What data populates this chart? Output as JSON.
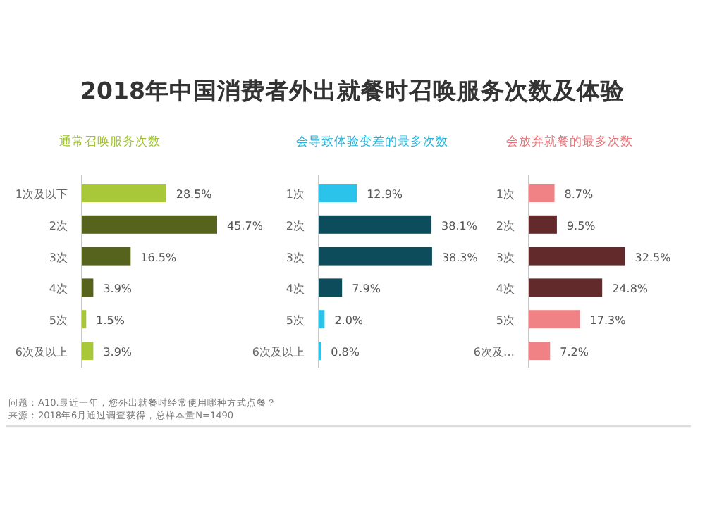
{
  "chart_data": [
    {
      "type": "bar",
      "orientation": "horizontal",
      "title": "2018年中国消费者外出就餐时召唤服务次数及体验",
      "subtitle": "通常召唤服务次数",
      "categories": [
        "1次及以下",
        "2次",
        "3次",
        "4次",
        "5次",
        "6次及以上"
      ],
      "values": [
        28.5,
        45.7,
        16.5,
        3.9,
        1.5,
        3.9
      ],
      "value_labels": [
        "28.5%",
        "45.7%",
        "16.5%",
        "3.9%",
        "1.5%",
        "3.9%"
      ],
      "colors": [
        "#a8c83a",
        "#56631c",
        "#56631c",
        "#56631c",
        "#a8c83a",
        "#a8c83a"
      ],
      "annotations": [
        "问题：A10.最近一年，您外出就餐时经常使用哪种方式点餐？",
        "来源：2018年6月通过调查获得，总样本量N=1490"
      ]
    },
    {
      "type": "bar",
      "orientation": "horizontal",
      "subtitle": "会导致体验变差的最多次数",
      "categories": [
        "1次",
        "2次",
        "3次",
        "4次",
        "5次",
        "6次及以上"
      ],
      "values": [
        12.9,
        38.1,
        38.3,
        7.9,
        2.0,
        0.8
      ],
      "value_labels": [
        "12.9%",
        "38.1%",
        "38.3%",
        "7.9%",
        "2.0%",
        "0.8%"
      ],
      "colors": [
        "#2cc3ea",
        "#0d4c5b",
        "#0d4c5b",
        "#0d4c5b",
        "#2cc3ea",
        "#2cc3ea"
      ]
    },
    {
      "type": "bar",
      "orientation": "horizontal",
      "subtitle": "会放弃就餐的最多次数",
      "categories": [
        "1次",
        "2次",
        "3次",
        "4次",
        "5次",
        "6次及…"
      ],
      "values": [
        8.7,
        9.5,
        32.5,
        24.8,
        17.3,
        7.2
      ],
      "value_labels": [
        "8.7%",
        "9.5%",
        "32.5%",
        "24.8%",
        "17.3%",
        "7.2%"
      ],
      "colors": [
        "#f08286",
        "#632a2c",
        "#632a2c",
        "#632a2c",
        "#f08286",
        "#f08286"
      ]
    }
  ]
}
